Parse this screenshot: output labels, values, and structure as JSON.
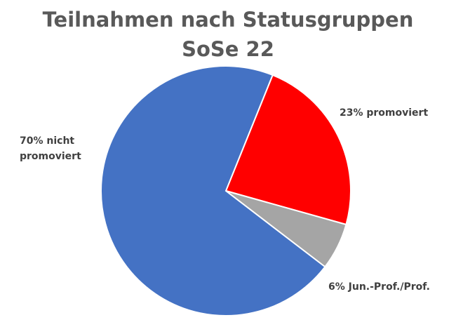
{
  "chart_data": {
    "type": "pie",
    "title": "Teilnahmen nach Statusgruppen SoSe 22",
    "title_lines": [
      "Teilnahmen nach Statusgruppen",
      "SoSe 22"
    ],
    "slices": [
      {
        "name": "promoviert",
        "value": 23,
        "label_lines": [
          "23% promoviert"
        ],
        "color": "#FF0000"
      },
      {
        "name": "Jun.-Prof./Prof.",
        "value": 6,
        "label_lines": [
          "6% Jun.-Prof./Prof."
        ],
        "color": "#A5A5A5"
      },
      {
        "name": "nicht promoviert",
        "value": 70,
        "label_lines": [
          "70% nicht",
          "promoviert"
        ],
        "color": "#4472C4"
      }
    ],
    "start_angle_deg": 22,
    "direction": "clockwise",
    "legend": "none",
    "data_labels": "outside"
  }
}
